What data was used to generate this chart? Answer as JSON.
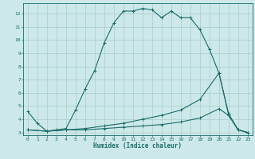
{
  "xlabel": "Humidex (Indice chaleur)",
  "background_color": "#cce8e8",
  "grid_color": "#aacccc",
  "line_color": "#1a6b6b",
  "xlim": [
    -0.5,
    23.5
  ],
  "ylim": [
    2.8,
    12.8
  ],
  "yticks": [
    3,
    4,
    5,
    6,
    7,
    8,
    9,
    10,
    11,
    12
  ],
  "xticks": [
    0,
    1,
    2,
    3,
    4,
    5,
    6,
    7,
    8,
    9,
    10,
    11,
    12,
    13,
    14,
    15,
    16,
    17,
    18,
    19,
    20,
    21,
    22,
    23
  ],
  "series1_x": [
    0,
    1,
    2,
    3,
    4,
    5,
    6,
    7,
    8,
    9,
    10,
    11,
    12,
    13,
    14,
    15,
    16,
    17,
    18,
    19,
    20,
    21,
    22,
    23
  ],
  "series1_y": [
    4.6,
    3.7,
    3.1,
    3.2,
    3.3,
    4.7,
    6.3,
    7.7,
    9.8,
    11.3,
    12.2,
    12.2,
    12.4,
    12.3,
    11.7,
    12.2,
    11.7,
    11.7,
    10.8,
    9.3,
    7.5,
    4.4,
    3.2,
    3.0
  ],
  "series2_x": [
    0,
    2,
    4,
    6,
    8,
    10,
    12,
    14,
    16,
    18,
    20,
    21,
    22,
    23
  ],
  "series2_y": [
    3.2,
    3.1,
    3.2,
    3.2,
    3.3,
    3.4,
    3.5,
    3.6,
    3.8,
    4.1,
    4.8,
    4.3,
    3.2,
    3.0
  ],
  "series3_x": [
    0,
    2,
    4,
    6,
    8,
    10,
    12,
    14,
    16,
    18,
    20,
    21,
    22,
    23
  ],
  "series3_y": [
    3.2,
    3.1,
    3.2,
    3.3,
    3.5,
    3.7,
    4.0,
    4.3,
    4.7,
    5.5,
    7.5,
    4.4,
    3.2,
    3.0
  ]
}
